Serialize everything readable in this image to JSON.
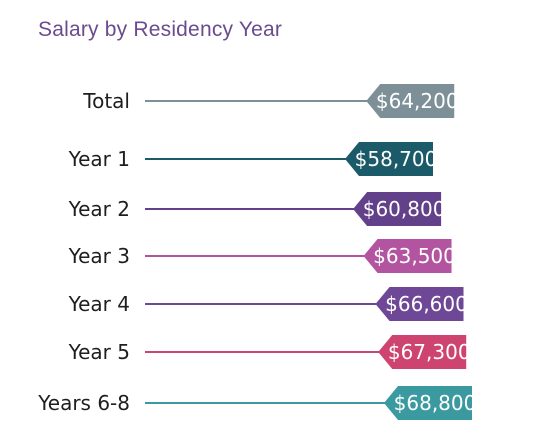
{
  "colors": {
    "title": "#6b4b8e",
    "label": "#1e1e1e",
    "value_text": "#ffffff"
  },
  "chart_data": {
    "type": "lollipop",
    "title": "Salary by Residency Year",
    "xlabel": "",
    "ylabel": "",
    "categories": [
      "Total",
      "Year 1",
      "Year 2",
      "Year 3",
      "Year 4",
      "Year 5",
      "Years 6-8"
    ],
    "values": [
      64200,
      58700,
      60800,
      63500,
      66600,
      67300,
      68800
    ],
    "value_labels": [
      "$64,200",
      "$58,700",
      "$60,800",
      "$63,500",
      "$66,600",
      "$67,300",
      "$68,800"
    ],
    "colors": [
      "#7d9098",
      "#1b5a68",
      "#63408a",
      "#b2549f",
      "#6e4796",
      "#ce4470",
      "#3a9aa0"
    ],
    "grid": false,
    "legend": "none"
  }
}
